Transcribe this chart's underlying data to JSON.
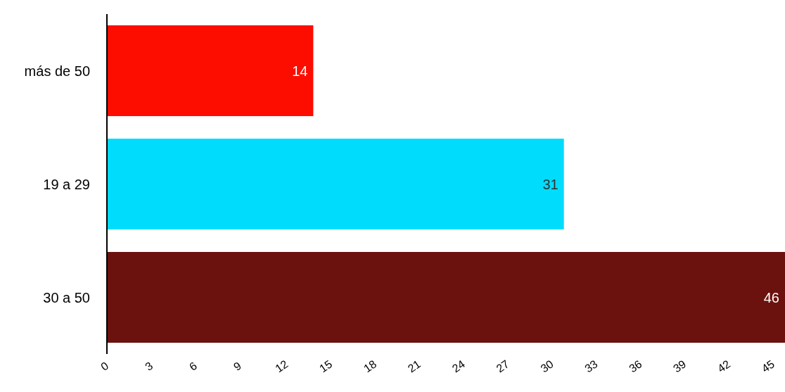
{
  "chart_data": {
    "type": "bar",
    "orientation": "horizontal",
    "categories": [
      "más de 50",
      "19 a 29",
      "30 a 50"
    ],
    "values": [
      14,
      31,
      46
    ],
    "colors": [
      "#fc0d00",
      "#00dcfc",
      "#6b120f"
    ],
    "xlim": [
      0,
      46
    ],
    "xticks": [
      0,
      3,
      6,
      9,
      12,
      15,
      18,
      21,
      24,
      27,
      30,
      33,
      36,
      39,
      42,
      45
    ],
    "data_labels": true
  }
}
